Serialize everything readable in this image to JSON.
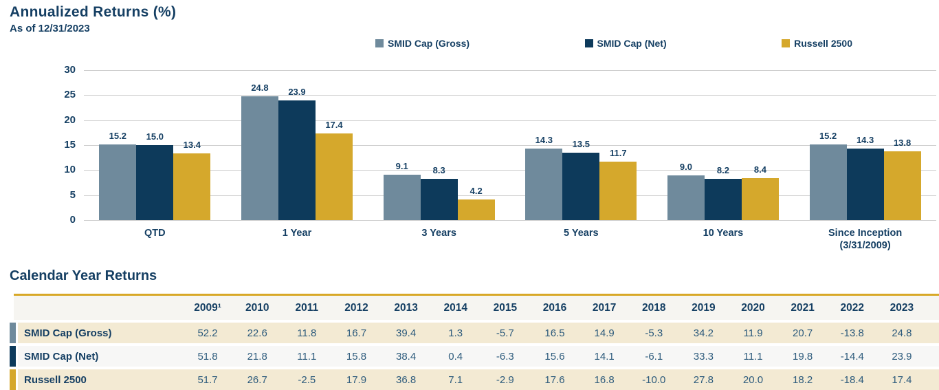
{
  "header": {
    "title": "Annualized Returns (%)",
    "as_of": "As of 12/31/2023"
  },
  "colors": {
    "gross": "#6F8A9C",
    "net": "#0D3A5B",
    "russell": "#D5A82C",
    "navy_text": "#153F63",
    "cream_row": "#F3EAD3",
    "plain_row": "#F7F7F6",
    "header_row_bg": "#F6F5F1",
    "gold_border": "#D8A827",
    "gridline": "#CFCFCF"
  },
  "chart_data": {
    "type": "bar",
    "title": "Annualized Returns (%)",
    "subtitle": "As of 12/31/2023",
    "categories": [
      "QTD",
      "1 Year",
      "3 Years",
      "5 Years",
      "10 Years",
      "Since Inception\n(3/31/2009)"
    ],
    "series": [
      {
        "name": "SMID Cap (Gross)",
        "color": "#6F8A9C",
        "values": [
          15.2,
          24.8,
          9.1,
          14.3,
          9.0,
          15.2
        ]
      },
      {
        "name": "SMID Cap (Net)",
        "color": "#0D3A5B",
        "values": [
          15.0,
          23.9,
          8.3,
          13.5,
          8.2,
          14.3
        ]
      },
      {
        "name": "Russell 2500",
        "color": "#D5A82C",
        "values": [
          13.4,
          17.4,
          4.2,
          11.7,
          8.4,
          13.8
        ]
      }
    ],
    "ylim": [
      0,
      30
    ],
    "yticks": [
      0,
      5,
      10,
      15,
      20,
      25,
      30
    ],
    "grid": true,
    "legend_position": "top",
    "value_labels": true
  },
  "table": {
    "title": "Calendar Year Returns",
    "columns": [
      "2009¹",
      "2010",
      "2011",
      "2012",
      "2013",
      "2014",
      "2015",
      "2016",
      "2017",
      "2018",
      "2019",
      "2020",
      "2021",
      "2022",
      "2023"
    ],
    "rows": [
      {
        "label": "SMID Cap (Gross)",
        "color": "#6F8A9C",
        "values": [
          52.2,
          22.6,
          11.8,
          16.7,
          39.4,
          1.3,
          -5.7,
          16.5,
          14.9,
          -5.3,
          34.2,
          11.9,
          20.7,
          -13.8,
          24.8
        ]
      },
      {
        "label": "SMID Cap (Net)",
        "color": "#0D3A5B",
        "values": [
          51.8,
          21.8,
          11.1,
          15.8,
          38.4,
          0.4,
          -6.3,
          15.6,
          14.1,
          -6.1,
          33.3,
          11.1,
          19.8,
          -14.4,
          23.9
        ]
      },
      {
        "label": "Russell 2500",
        "color": "#D5A82C",
        "values": [
          51.7,
          26.7,
          -2.5,
          17.9,
          36.8,
          7.1,
          -2.9,
          17.6,
          16.8,
          -10.0,
          27.8,
          20.0,
          18.2,
          -18.4,
          17.4
        ]
      }
    ]
  }
}
